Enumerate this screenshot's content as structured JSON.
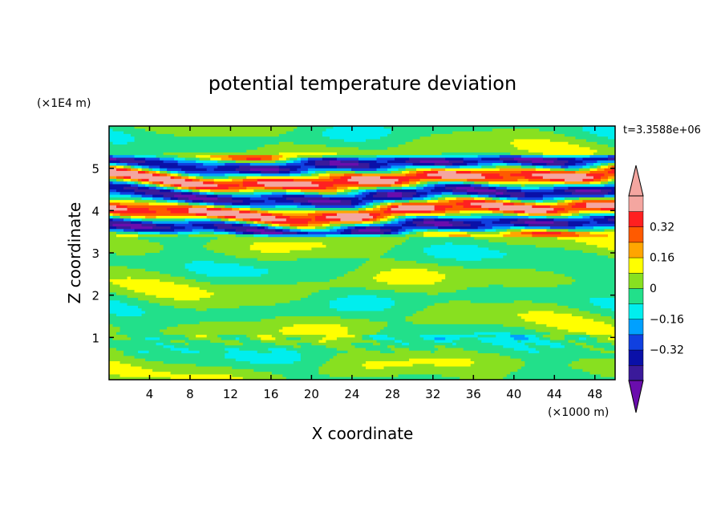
{
  "chart_data": {
    "type": "heatmap",
    "title": "potential temperature deviation",
    "time_label": "t=3.3588e+06",
    "xlabel": "X coordinate",
    "ylabel": "Z coordinate",
    "x_unit": "(×1000 m)",
    "y_unit": "(×1E4 m)",
    "xlim": [
      0,
      50
    ],
    "ylim": [
      0,
      6
    ],
    "x_ticks": [
      4,
      8,
      12,
      16,
      20,
      24,
      28,
      32,
      36,
      40,
      44,
      48
    ],
    "y_ticks": [
      1,
      2,
      3,
      4,
      5
    ],
    "colorbar": {
      "levels": [
        -0.48,
        -0.4,
        -0.32,
        -0.24,
        -0.16,
        -0.08,
        0,
        0.08,
        0.16,
        0.24,
        0.32,
        0.4,
        0.48
      ],
      "colors": [
        "#6a0dad",
        "#3a1a9a",
        "#0a10a8",
        "#1040e0",
        "#00a0ff",
        "#00eeee",
        "#22e08a",
        "#88e020",
        "#ffff00",
        "#ffa500",
        "#ff5a00",
        "#ff2020",
        "#f4a6a0",
        "#f4a6a0"
      ],
      "labels": [
        "-0.32",
        "-0.16",
        "0",
        "0.16",
        "0.32"
      ],
      "label_values": [
        -0.32,
        -0.16,
        0,
        0.16,
        0.32
      ],
      "extend": "both"
    },
    "field_regions": [
      {
        "z_range": [
          0,
          3.4
        ],
        "values": "near zero",
        "colors": [
          "#22e08a",
          "#88e020"
        ]
      },
      {
        "z_range": [
          3.4,
          5.3
        ],
        "values": "strong layered banding",
        "min": -0.48,
        "max": 0.48
      },
      {
        "z_range": [
          5.3,
          6.0
        ],
        "values": "near zero",
        "colors": [
          "#88e020",
          "#22e08a"
        ]
      }
    ]
  }
}
